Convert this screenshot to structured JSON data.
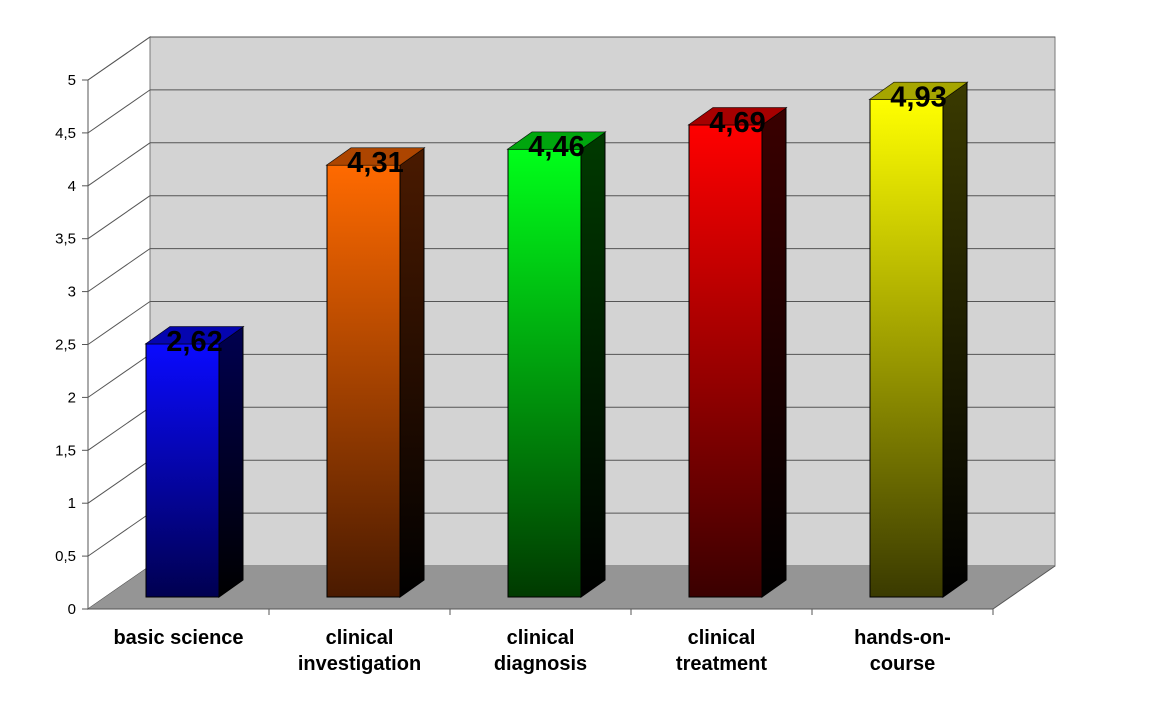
{
  "chart_data": {
    "type": "bar",
    "style": "3d-column",
    "categories": [
      [
        "basic science"
      ],
      [
        "clinical",
        "investigation"
      ],
      [
        "clinical",
        "diagnosis"
      ],
      [
        "clinical",
        "treatment"
      ],
      [
        "hands-on-",
        "course"
      ]
    ],
    "values": [
      2.62,
      4.31,
      4.46,
      4.69,
      4.93
    ],
    "data_labels": [
      "2,62",
      "4,31",
      "4,46",
      "4,69",
      "4,93"
    ],
    "ylim": [
      0,
      5
    ],
    "yticks": [
      "0",
      "0,5",
      "1",
      "1,5",
      "2",
      "2,5",
      "3",
      "3,5",
      "4",
      "4,5",
      "5"
    ],
    "grid": true,
    "legend": "none",
    "colors": [
      "#0a0aff",
      "#ff6a00",
      "#00ff1a",
      "#ff0000",
      "#ffff00"
    ],
    "colors_dark": [
      "#000050",
      "#4a1a00",
      "#003a00",
      "#3a0000",
      "#3a3a00"
    ],
    "wall_color": "#d3d3d3",
    "floor_color": "#959595",
    "title": "",
    "xlabel": "",
    "ylabel": ""
  }
}
